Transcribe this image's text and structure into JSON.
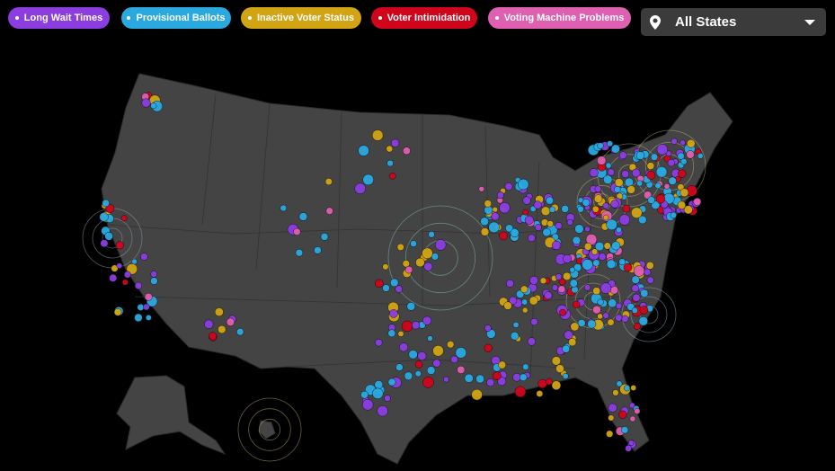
{
  "filters": [
    {
      "label": "Long Wait Times",
      "color": "#8b3ddf"
    },
    {
      "label": "Provisional Ballots",
      "color": "#2aa9e0"
    },
    {
      "label": "Inactive Voter Status",
      "color": "#d2a414"
    },
    {
      "label": "Voter Intimidation",
      "color": "#d0051c"
    },
    {
      "label": "Voting Machine Problems",
      "color": "#df5fb1"
    }
  ],
  "location_select": {
    "label": "All States"
  }
}
